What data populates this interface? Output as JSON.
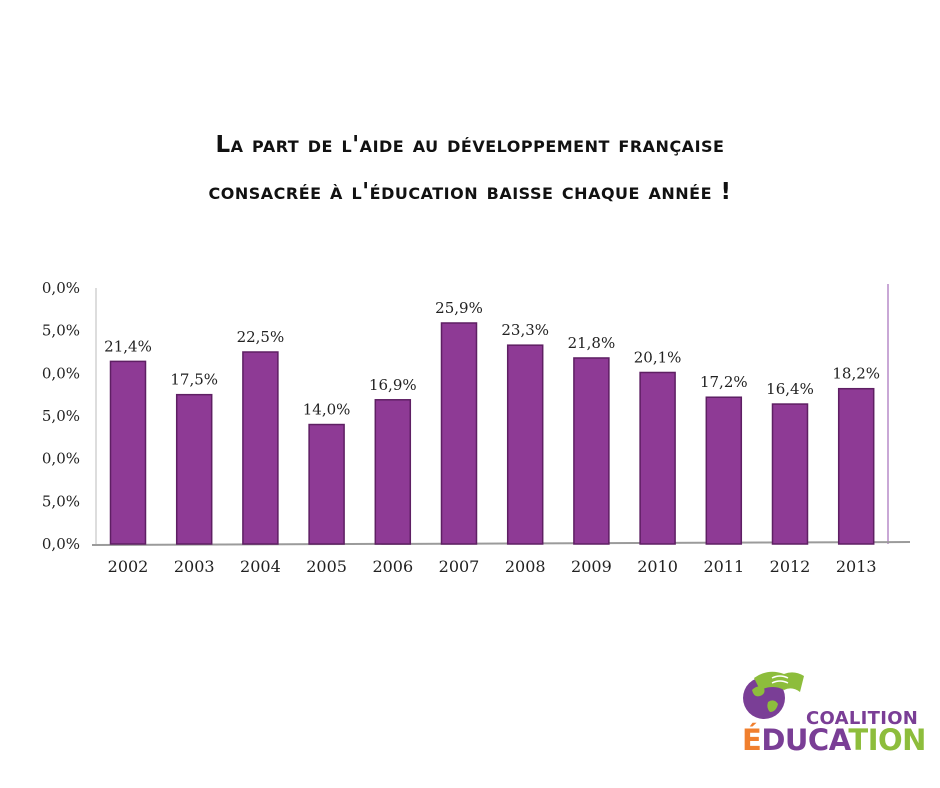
{
  "title": {
    "line1": "La part de l'aide au développement française",
    "line2": "consacrée à l'éducation baisse chaque année !"
  },
  "chart_data": {
    "type": "bar",
    "categories": [
      "2002",
      "2003",
      "2004",
      "2005",
      "2006",
      "2007",
      "2008",
      "2009",
      "2010",
      "2011",
      "2012",
      "2013"
    ],
    "values": [
      21.4,
      17.5,
      22.5,
      14.0,
      16.9,
      25.9,
      23.3,
      21.8,
      20.1,
      17.2,
      16.4,
      18.2
    ],
    "data_labels": [
      "21,4%",
      "17,5%",
      "22,5%",
      "14,0%",
      "16,9%",
      "25,9%",
      "23,3%",
      "21,8%",
      "20,1%",
      "17,2%",
      "16,4%",
      "18,2%"
    ],
    "ytick_labels": [
      "0,0%",
      "5,0%",
      "0,0%",
      "5,0%",
      "0,0%",
      "5,0%",
      "0,0%"
    ],
    "ylim": [
      0,
      30
    ],
    "bar_color": "#8e3a95",
    "bar_edge_color": "#5e1f63"
  },
  "logo": {
    "line1": "COALITION",
    "line2_left": "É",
    "line2_mid": "DUCA",
    "line2_right": "TION",
    "colors": {
      "purple": "#7a3e96",
      "orange": "#f07f2e",
      "green": "#8dbd3c"
    }
  }
}
